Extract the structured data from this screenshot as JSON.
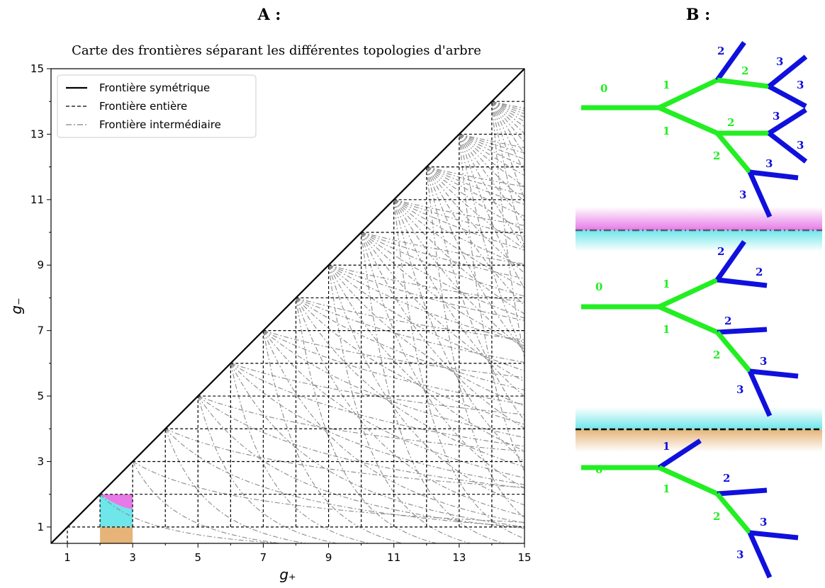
{
  "panels": {
    "a_label": "A :",
    "b_label": "B :"
  },
  "chart_data": {
    "type": "line",
    "title": "Carte des frontières séparant les différentes topologies d'arbre",
    "xlabel": "g₊",
    "ylabel": "g₋",
    "xlim": [
      0.5,
      15
    ],
    "ylim": [
      0.5,
      15
    ],
    "xticks": [
      1,
      3,
      5,
      7,
      9,
      11,
      13,
      15
    ],
    "yticks": [
      1,
      3,
      5,
      7,
      9,
      11,
      13,
      15
    ],
    "grid": false,
    "legend_position": "top-left",
    "series": [
      {
        "name": "Frontière symétrique",
        "style": "solid",
        "color": "#000000",
        "x": [
          0.5,
          15
        ],
        "y": [
          0.5,
          15
        ]
      },
      {
        "name": "Frontière entière",
        "style": "dashed",
        "color": "#000000",
        "description_rule": "horizontal lines y=n for x in [n, 15] and vertical lines x=m for y in [1, m], n,m integers 1..14"
      },
      {
        "name": "Frontière intermédiaire",
        "style": "dashdot",
        "color": "#808080",
        "description_rule": "families of curves fanning out from each diagonal point (n, n)"
      }
    ],
    "shaded_regions": [
      {
        "x": [
          2,
          3
        ],
        "y": [
          0.5,
          1
        ],
        "color": "#e6b478"
      },
      {
        "x": [
          2,
          3
        ],
        "y": [
          1,
          2
        ],
        "color": "#6ee6ea",
        "upper_boundary": "curved"
      },
      {
        "x": [
          2,
          3
        ],
        "y": [
          1.5,
          2
        ],
        "color": "#e67ae6",
        "lower_boundary": "curved"
      }
    ]
  },
  "trees": [
    {
      "segments": [
        {
          "label": "0",
          "level": 0
        },
        {
          "label": "1",
          "level": 1
        },
        {
          "label": "1",
          "level": 1
        },
        {
          "label": "2",
          "level": 2
        },
        {
          "label": "2",
          "level": 2
        },
        {
          "label": "2",
          "level": 2
        },
        {
          "label": "2",
          "level": 2
        },
        {
          "label": "3",
          "level": 3
        },
        {
          "label": "3",
          "level": 3
        },
        {
          "label": "3",
          "level": 3
        },
        {
          "label": "3",
          "level": 3
        },
        {
          "label": "3",
          "level": 3
        },
        {
          "label": "3",
          "level": 3
        }
      ]
    },
    {
      "segments": [
        {
          "label": "0",
          "level": 0
        },
        {
          "label": "1",
          "level": 1
        },
        {
          "label": "1",
          "level": 1
        },
        {
          "label": "2",
          "level": 2
        },
        {
          "label": "2",
          "level": 2
        },
        {
          "label": "2",
          "level": 2
        },
        {
          "label": "2",
          "level": 2
        },
        {
          "label": "3",
          "level": 3
        },
        {
          "label": "3",
          "level": 3
        }
      ]
    },
    {
      "segments": [
        {
          "label": "0",
          "level": 0
        },
        {
          "label": "1",
          "level": 1
        },
        {
          "label": "1",
          "level": 1
        },
        {
          "label": "2",
          "level": 2
        },
        {
          "label": "2",
          "level": 2
        },
        {
          "label": "3",
          "level": 3
        },
        {
          "label": "3",
          "level": 3
        }
      ]
    }
  ],
  "colors": {
    "trunk": "#22ee22",
    "terminal": "#1010dd",
    "magenta_band": "#e67ae6",
    "cyan_band": "#6ee6ea",
    "orange_band": "#e6b478"
  }
}
